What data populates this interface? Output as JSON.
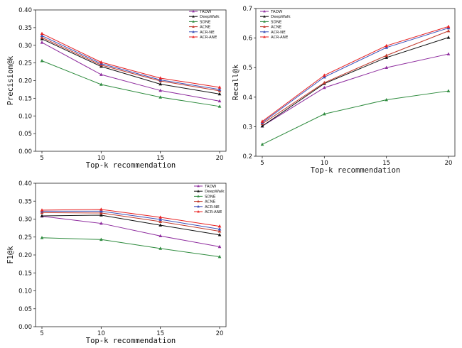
{
  "chart_data": [
    {
      "type": "line",
      "x": [
        5,
        10,
        15,
        20
      ],
      "xlabel": "Top-k recommendation",
      "ylabel": "Precision@k",
      "ylim": [
        0.0,
        0.4
      ],
      "yticks": [
        "0.00",
        "0.05",
        "0.10",
        "0.15",
        "0.20",
        "0.25",
        "0.30",
        "0.35",
        "0.40"
      ],
      "xticks": [
        "5",
        "10",
        "15",
        "20"
      ],
      "legend_position": "top-right",
      "series": [
        {
          "name": "TADW",
          "color": "#8e2c9e",
          "values": [
            0.308,
            0.217,
            0.172,
            0.142
          ]
        },
        {
          "name": "DeepWalk",
          "color": "#111111",
          "values": [
            0.318,
            0.24,
            0.19,
            0.162
          ]
        },
        {
          "name": "SDNE",
          "color": "#2e8b3e",
          "values": [
            0.256,
            0.189,
            0.153,
            0.127
          ]
        },
        {
          "name": "ACNE",
          "color": "#c0392b",
          "values": [
            0.322,
            0.244,
            0.199,
            0.171
          ]
        },
        {
          "name": "ACR-NE",
          "color": "#3a4fb8",
          "values": [
            0.327,
            0.248,
            0.202,
            0.175
          ]
        },
        {
          "name": "ACR-ANE",
          "color": "#e82020",
          "values": [
            0.333,
            0.252,
            0.207,
            0.181
          ]
        }
      ]
    },
    {
      "type": "line",
      "x": [
        5,
        10,
        15,
        20
      ],
      "xlabel": "Top-k recommendation",
      "ylabel": "Recall@k",
      "ylim": [
        0.2,
        0.7
      ],
      "yticks": [
        "0.2",
        "0.3",
        "0.4",
        "0.5",
        "0.6",
        "0.7"
      ],
      "xticks": [
        "5",
        "10",
        "15",
        "20"
      ],
      "legend_position": "top-left",
      "series": [
        {
          "name": "TADW",
          "color": "#8e2c9e",
          "values": [
            0.302,
            0.432,
            0.5,
            0.546
          ]
        },
        {
          "name": "DeepWalk",
          "color": "#111111",
          "values": [
            0.302,
            0.446,
            0.534,
            0.602
          ]
        },
        {
          "name": "SDNE",
          "color": "#2e8b3e",
          "values": [
            0.24,
            0.343,
            0.391,
            0.421
          ]
        },
        {
          "name": "ACNE",
          "color": "#c0392b",
          "values": [
            0.31,
            0.449,
            0.541,
            0.624
          ]
        },
        {
          "name": "ACR-NE",
          "color": "#3a4fb8",
          "values": [
            0.314,
            0.468,
            0.568,
            0.634
          ]
        },
        {
          "name": "ACR-ANE",
          "color": "#e82020",
          "values": [
            0.318,
            0.474,
            0.574,
            0.639
          ]
        }
      ]
    },
    {
      "type": "line",
      "x": [
        5,
        10,
        15,
        20
      ],
      "xlabel": "Top-k recommendation",
      "ylabel": "F1@k",
      "ylim": [
        0.0,
        0.4
      ],
      "yticks": [
        "0.00",
        "0.05",
        "0.10",
        "0.15",
        "0.20",
        "0.25",
        "0.30",
        "0.35",
        "0.40"
      ],
      "xticks": [
        "5",
        "10",
        "15",
        "20"
      ],
      "legend_position": "top-right",
      "series": [
        {
          "name": "TADW",
          "color": "#8e2c9e",
          "values": [
            0.308,
            0.288,
            0.253,
            0.223
          ]
        },
        {
          "name": "DeepWalk",
          "color": "#111111",
          "values": [
            0.309,
            0.311,
            0.283,
            0.256
          ]
        },
        {
          "name": "SDNE",
          "color": "#2e8b3e",
          "values": [
            0.248,
            0.243,
            0.218,
            0.195
          ]
        },
        {
          "name": "ACNE",
          "color": "#c0392b",
          "values": [
            0.318,
            0.317,
            0.293,
            0.266
          ]
        },
        {
          "name": "ACR-NE",
          "color": "#3a4fb8",
          "values": [
            0.322,
            0.322,
            0.299,
            0.272
          ]
        },
        {
          "name": "ACR-ANE",
          "color": "#e82020",
          "values": [
            0.325,
            0.327,
            0.305,
            0.28
          ]
        }
      ]
    }
  ]
}
